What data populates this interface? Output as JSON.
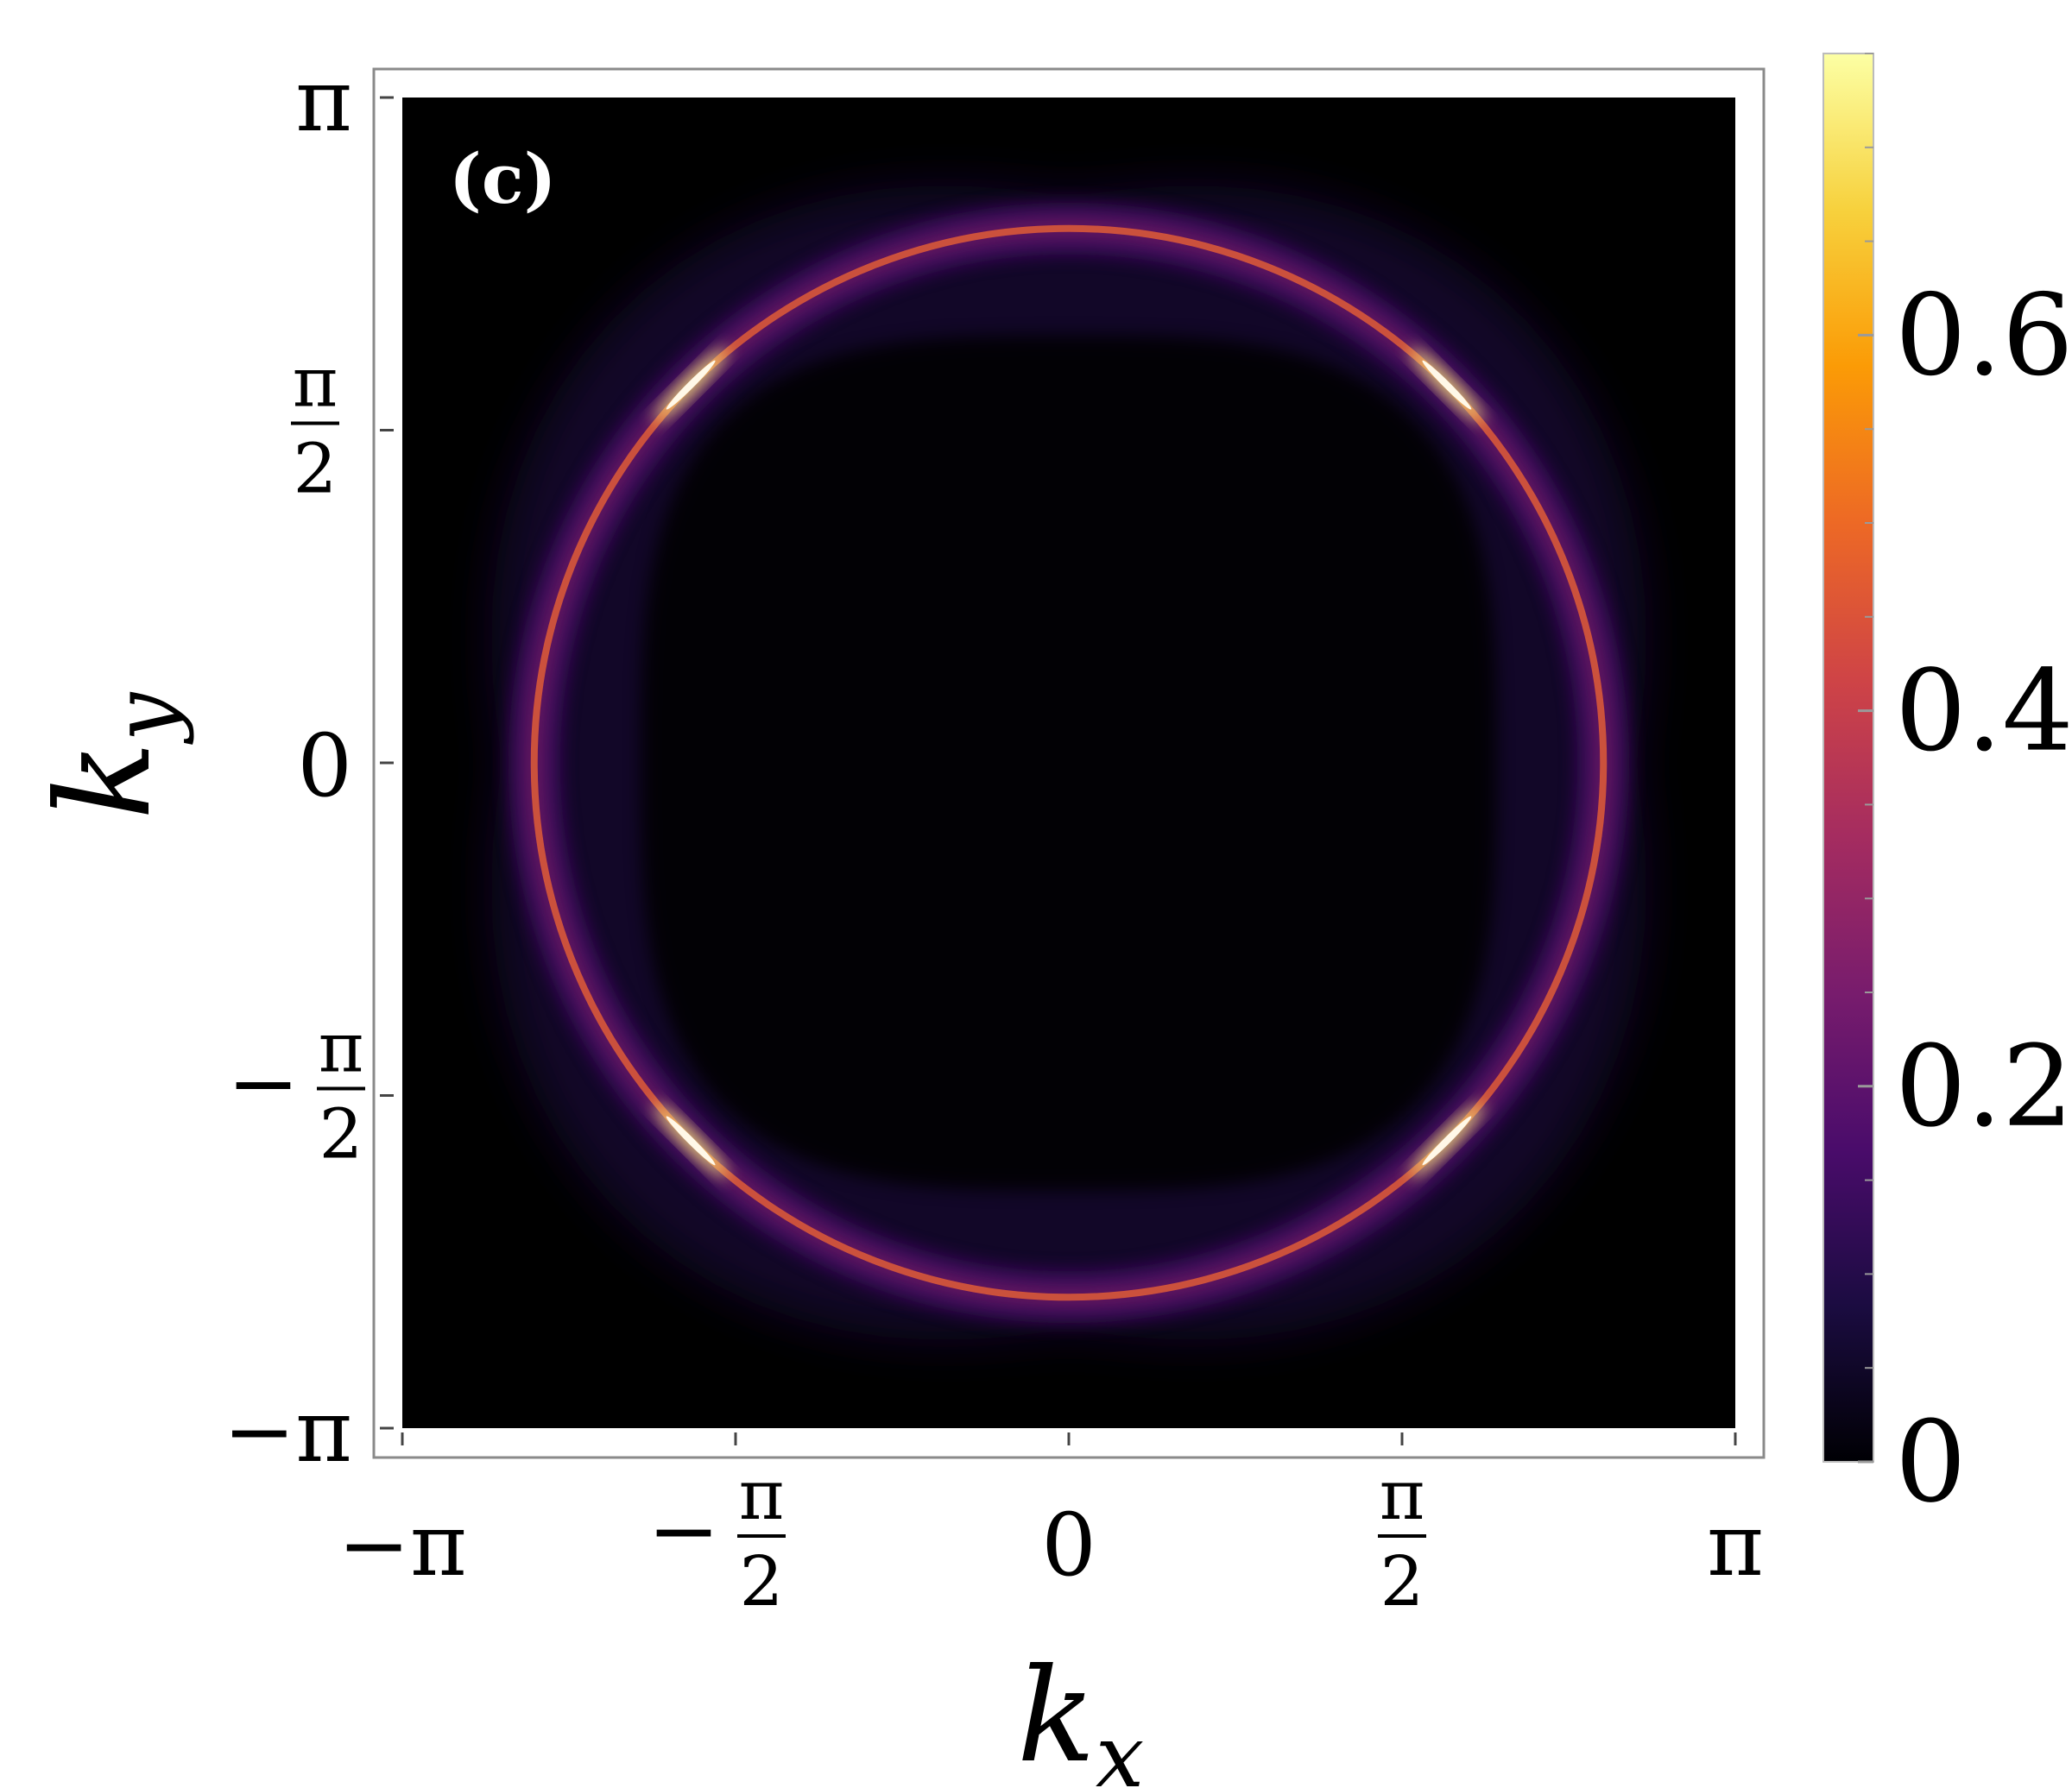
{
  "chart_data": {
    "type": "heatmap",
    "panel_label": "(c)",
    "xlabel": "k",
    "xlabel_sub": "x",
    "ylabel": "k",
    "ylabel_sub": "y",
    "xlim": [
      -3.14159,
      3.14159
    ],
    "ylim": [
      -3.14159,
      3.14159
    ],
    "x_ticks": [
      {
        "value": -3.14159,
        "prefix": "−",
        "num": "π",
        "den": ""
      },
      {
        "value": -1.5708,
        "prefix": "−",
        "num": "π",
        "den": "2"
      },
      {
        "value": 0,
        "prefix": "",
        "num": "0",
        "den": ""
      },
      {
        "value": 1.5708,
        "prefix": "",
        "num": "π",
        "den": "2"
      },
      {
        "value": 3.14159,
        "prefix": "",
        "num": "π",
        "den": ""
      }
    ],
    "y_ticks": [
      {
        "value": 3.14159,
        "prefix": "",
        "num": "π",
        "den": ""
      },
      {
        "value": 1.5708,
        "prefix": "",
        "num": "π",
        "den": "2"
      },
      {
        "value": 0,
        "prefix": "",
        "num": "0",
        "den": ""
      },
      {
        "value": -1.5708,
        "prefix": "−",
        "num": "π",
        "den": "2"
      },
      {
        "value": -3.14159,
        "prefix": "−",
        "num": "π",
        "den": ""
      }
    ],
    "colorbar": {
      "range": [
        0,
        0.75
      ],
      "ticks": [
        {
          "value": 0,
          "label": "0"
        },
        {
          "value": 0.2,
          "label": "0.2"
        },
        {
          "value": 0.4,
          "label": "0.4"
        },
        {
          "value": 0.6,
          "label": "0.6"
        }
      ],
      "minor_tick_step": 0.05,
      "colormap": [
        "#000004",
        "#1b0c41",
        "#4a0c6b",
        "#781c6d",
        "#a52c60",
        "#cf4446",
        "#ed6925",
        "#fb9b06",
        "#f7d13d",
        "#fcffa4"
      ]
    },
    "features": {
      "main_ring_radius": 2.52,
      "main_ring_peak": 0.5,
      "main_ring_hotspot_peak": 0.72,
      "hotspot_angles_deg": [
        45,
        135,
        225,
        315
      ],
      "broad_halo_peak": 0.1,
      "background": 0
    }
  }
}
